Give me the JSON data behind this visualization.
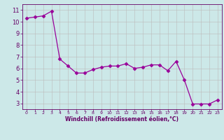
{
  "x": [
    0,
    1,
    2,
    3,
    4,
    5,
    6,
    7,
    8,
    9,
    10,
    11,
    12,
    13,
    14,
    15,
    16,
    17,
    18,
    19,
    20,
    21,
    22,
    23
  ],
  "y": [
    10.3,
    10.4,
    10.5,
    10.9,
    6.8,
    6.2,
    5.6,
    5.6,
    5.9,
    6.1,
    6.2,
    6.2,
    6.4,
    6.0,
    6.1,
    6.3,
    6.3,
    5.8,
    6.6,
    5.0,
    2.95,
    2.95,
    2.95,
    3.3
  ],
  "line_color": "#990099",
  "marker": "D",
  "marker_size": 2.5,
  "bg_color": "#cce8e8",
  "grid_color": "#bbbbbb",
  "xlabel": "Windchill (Refroidissement éolien,°C)",
  "xlim": [
    -0.5,
    23.5
  ],
  "ylim": [
    2.5,
    11.5
  ],
  "yticks": [
    3,
    4,
    5,
    6,
    7,
    8,
    9,
    10,
    11
  ],
  "xticks": [
    0,
    1,
    2,
    3,
    4,
    5,
    6,
    7,
    8,
    9,
    10,
    11,
    12,
    13,
    14,
    15,
    16,
    17,
    18,
    19,
    20,
    21,
    22,
    23
  ],
  "label_color": "#660066",
  "tick_color": "#660066",
  "axis_color": "#660066",
  "tick_fontsize_x": 4.5,
  "tick_fontsize_y": 6.0,
  "xlabel_fontsize": 5.5
}
